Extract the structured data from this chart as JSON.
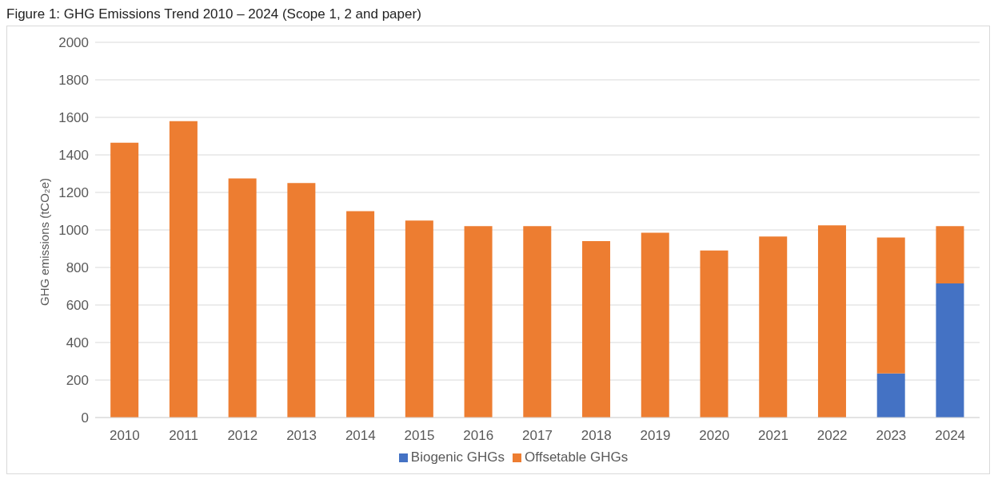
{
  "chart_data": {
    "type": "bar",
    "title": "Figure 1: GHG Emissions Trend 2010 – 2024 (Scope 1, 2 and paper)",
    "ylabel": "GHG emissions (tCO₂e)",
    "categories": [
      "2010",
      "2011",
      "2012",
      "2013",
      "2014",
      "2015",
      "2016",
      "2017",
      "2018",
      "2019",
      "2020",
      "2021",
      "2022",
      "2023",
      "2024"
    ],
    "stacked": true,
    "series": [
      {
        "name": "Biogenic GHGs",
        "color": "#4472c4",
        "values": [
          0,
          0,
          0,
          0,
          0,
          0,
          0,
          0,
          0,
          0,
          0,
          0,
          0,
          235,
          715
        ]
      },
      {
        "name": "Offsetable GHGs",
        "color": "#ed7d31",
        "values": [
          1465,
          1580,
          1275,
          1250,
          1100,
          1050,
          1020,
          1020,
          940,
          985,
          890,
          965,
          1025,
          725,
          305
        ]
      }
    ],
    "ylim": [
      0,
      2000
    ],
    "yticks": [
      0,
      200,
      400,
      600,
      800,
      1000,
      1200,
      1400,
      1600,
      1800,
      2000
    ],
    "grid": "y",
    "legend": "bottom"
  }
}
